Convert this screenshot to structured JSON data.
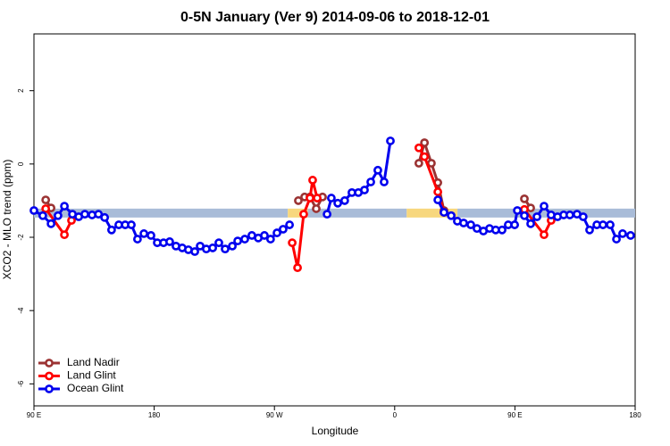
{
  "chart_data": {
    "type": "line",
    "title": "0-5N January (Ver 9)   2014-09-06 to 2018-12-01",
    "xlabel": "Longitude",
    "ylabel": "XCO2 - MLO trend (ppm)",
    "xlim": [
      90,
      540
    ],
    "xticks": [
      {
        "value": 90,
        "label": "90 E"
      },
      {
        "value": 180,
        "label": "180"
      },
      {
        "value": 270,
        "label": "90 W"
      },
      {
        "value": 360,
        "label": "0"
      },
      {
        "value": 450,
        "label": "90 E"
      },
      {
        "value": 540,
        "label": "180"
      }
    ],
    "ylim": [
      -6.6,
      3.55
    ],
    "yticks": [
      2,
      0,
      -2,
      -4,
      -6
    ],
    "grid": false,
    "legend": "bottom-left",
    "band": {
      "value": -1.34,
      "segments": [
        {
          "x": [
            90,
            280
          ],
          "color": "#a9bcd8"
        },
        {
          "x": [
            280,
            295
          ],
          "color": "#f7d77e"
        },
        {
          "x": [
            295,
            369
          ],
          "color": "#a9bcd8"
        },
        {
          "x": [
            369,
            407
          ],
          "color": "#f7d77e"
        },
        {
          "x": [
            407,
            540
          ],
          "color": "#a9bcd8"
        }
      ]
    },
    "series": [
      {
        "name": "Land Nadir",
        "color": "#9b3333",
        "x": [
          98.8,
          102.8,
          null,
          287.9,
          292.6,
          296.6,
          301.3,
          306.0,
          null,
          378.1,
          382.3,
          387.5,
          392.3,
          396.9,
          null,
          457.1,
          461.8
        ],
        "values": [
          -0.98,
          -1.2,
          null,
          -1.0,
          -0.9,
          -0.9,
          -1.22,
          -0.9,
          null,
          0.02,
          0.58,
          0.02,
          -0.51,
          -1.27,
          null,
          -0.95,
          -1.2
        ]
      },
      {
        "name": "Land Glint",
        "color": "#ff0000",
        "x": [
          98.8,
          112.8,
          118.1,
          null,
          283.3,
          287.3,
          291.9,
          296.6,
          298.6,
          302.0,
          null,
          378.1,
          382.3,
          392.3,
          396.9,
          null,
          457.1,
          471.8,
          477.1
        ],
        "values": [
          -1.22,
          -1.93,
          -1.54,
          null,
          -2.15,
          -2.83,
          -1.37,
          -0.93,
          -0.44,
          -0.93,
          null,
          0.44,
          0.2,
          -0.76,
          -1.32,
          null,
          -1.24,
          -1.93,
          -1.54
        ]
      },
      {
        "name": "Ocean Glint",
        "color": "#0000ee",
        "x": [
          90,
          96.6,
          102.8,
          108.0,
          112.8,
          118.8,
          123.5,
          128.1,
          133.5,
          138.3,
          142.9,
          148.1,
          153.5,
          158.3,
          162.9,
          167.5,
          172.3,
          177.6,
          182.3,
          187.0,
          191.6,
          196.3,
          201.0,
          205.6,
          210.4,
          214.4,
          219.0,
          223.8,
          228.4,
          233.1,
          238.5,
          242.5,
          247.8,
          253.1,
          257.9,
          262.5,
          267.1,
          271.9,
          276.5,
          281.3,
          null,
          309.4,
          312.6,
          317.4,
          322.6,
          328.0,
          332.8,
          337.4,
          342.1,
          347.4,
          352.1,
          356.8,
          null,
          392.3,
          396.9,
          402.3,
          406.9,
          411.6,
          417.0,
          421.6,
          426.4,
          431.0,
          435.6,
          440.4,
          445.0,
          449.8,
          451.8,
          457.1,
          461.8,
          466.5,
          471.8,
          477.1,
          481.9,
          486.5,
          491.1,
          496.5,
          501.1,
          505.9,
          511.3,
          515.9,
          521.3,
          526.0,
          530.6,
          536.6
        ],
        "values": [
          -1.27,
          -1.41,
          -1.63,
          -1.41,
          -1.15,
          -1.37,
          -1.44,
          -1.37,
          -1.39,
          -1.37,
          -1.46,
          -1.8,
          -1.66,
          -1.66,
          -1.66,
          -2.05,
          -1.9,
          -1.95,
          -2.15,
          -2.15,
          -2.12,
          -2.24,
          -2.29,
          -2.34,
          -2.39,
          -2.24,
          -2.32,
          -2.29,
          -2.15,
          -2.32,
          -2.24,
          -2.1,
          -2.05,
          -1.95,
          -2.02,
          -1.95,
          -2.05,
          -1.88,
          -1.78,
          -1.66,
          null,
          -1.37,
          -0.93,
          -1.07,
          -1.0,
          -0.78,
          -0.78,
          -0.71,
          -0.49,
          -0.17,
          -0.49,
          0.63,
          null,
          -0.98,
          -1.32,
          -1.41,
          -1.56,
          -1.61,
          -1.66,
          -1.76,
          -1.83,
          -1.76,
          -1.8,
          -1.8,
          -1.66,
          -1.66,
          -1.27,
          -1.41,
          -1.63,
          -1.44,
          -1.15,
          -1.39,
          -1.44,
          -1.39,
          -1.39,
          -1.37,
          -1.44,
          -1.8,
          -1.66,
          -1.66,
          -1.66,
          -2.05,
          -1.9,
          -1.95
        ]
      }
    ]
  }
}
